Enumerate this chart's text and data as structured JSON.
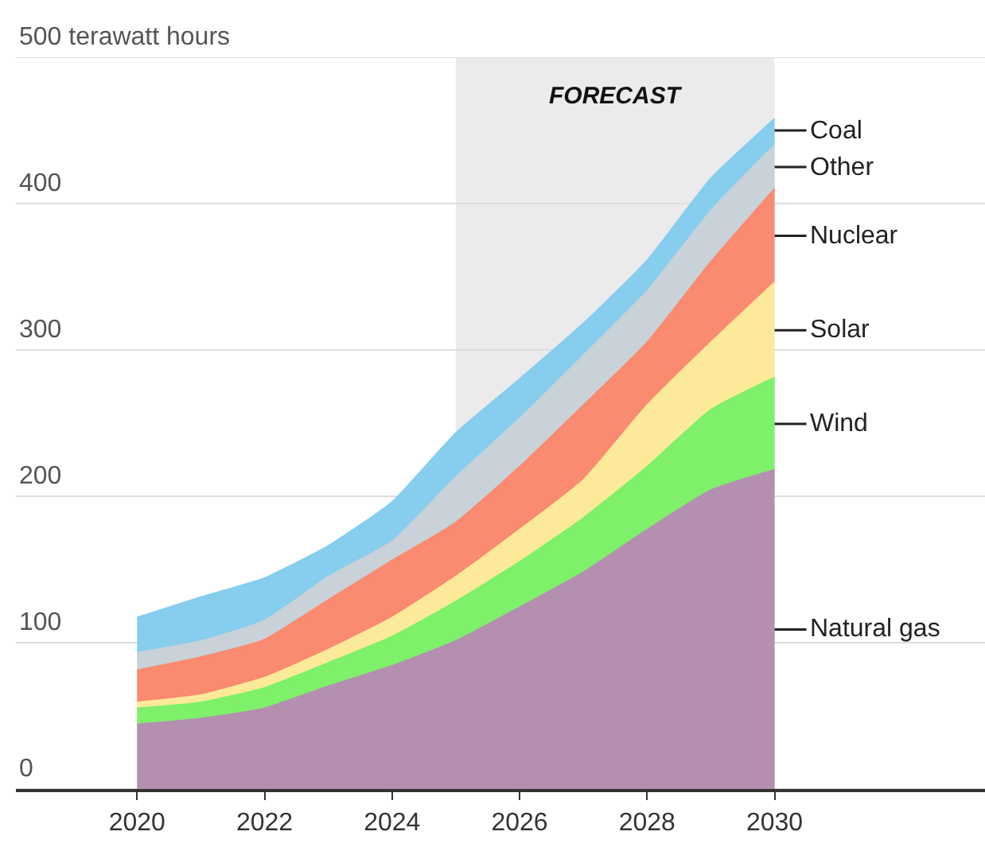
{
  "chart_data": {
    "type": "area",
    "stacked": true,
    "x": [
      2020,
      2021,
      2022,
      2023,
      2024,
      2025,
      2026,
      2027,
      2028,
      2029,
      2030
    ],
    "series": [
      {
        "name": "Natural gas",
        "color": "#b48fb0",
        "values": [
          44,
          48,
          55,
          70,
          84,
          101,
          124,
          148,
          177,
          204,
          218
        ]
      },
      {
        "name": "Wind",
        "color": "#7ef06a",
        "values": [
          11,
          11,
          14,
          16,
          20,
          27,
          31,
          37,
          43,
          55,
          63
        ]
      },
      {
        "name": "Solar",
        "color": "#fde99a",
        "values": [
          4,
          5,
          7,
          9,
          13,
          17,
          22,
          26,
          42,
          46,
          65
        ]
      },
      {
        "name": "Nuclear",
        "color": "#fa8a70",
        "values": [
          22,
          26,
          26,
          34,
          39,
          37,
          43,
          51,
          43,
          55,
          64
        ]
      },
      {
        "name": "Other",
        "color": "#c8d2d8",
        "values": [
          12,
          11,
          13,
          16,
          13,
          31,
          33,
          34,
          35,
          35,
          30
        ]
      },
      {
        "name": "Coal",
        "color": "#86cdee",
        "values": [
          24,
          30,
          29,
          21,
          27,
          30,
          27,
          22,
          21,
          22,
          18
        ]
      }
    ],
    "xlim": [
      2018.1,
      2033.3
    ],
    "xticks": [
      2020,
      2022,
      2024,
      2026,
      2028,
      2030
    ],
    "ylim": [
      0,
      500
    ],
    "yticks": [
      0,
      100,
      200,
      300,
      400,
      {
        "value": 500,
        "label": "500 terawatt hours"
      }
    ],
    "grid": "y",
    "bands": [
      {
        "axis": "x",
        "from": 2025,
        "to": 2030,
        "label": "FORECAST",
        "color": "#ebebeb"
      }
    ]
  }
}
